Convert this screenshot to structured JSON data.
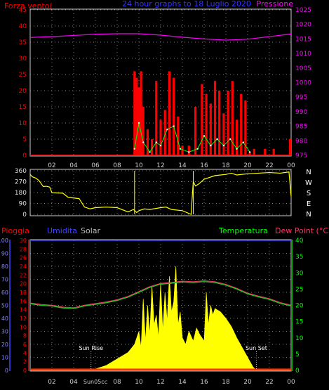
{
  "header": {
    "left": "Forza vento(",
    "center": "24 hour graphs to 18 Luglio 2020",
    "right": "Pressione"
  },
  "colors": {
    "red": "#ff0000",
    "yellow": "#ffff00",
    "magenta": "#ff00ff",
    "green": "#00cc00",
    "lime": "#00ff00",
    "blue": "#4444ff",
    "white": "#ffffff",
    "grid": "#aaaaaa",
    "bg": "#000000"
  },
  "chart_data": [
    {
      "type": "bar",
      "name": "wind-pressure",
      "left_axis": {
        "ticks": [
          "0",
          "5",
          "10",
          "15",
          "20",
          "25",
          "30",
          "35",
          "40",
          "45"
        ],
        "range": [
          0,
          45
        ]
      },
      "right_axis": {
        "label": "Pressione",
        "ticks": [
          "975",
          "980",
          "985",
          "990",
          "995",
          "1000",
          "1005",
          "1010",
          "1015",
          "1020",
          "1025"
        ],
        "range": [
          975,
          1025
        ]
      },
      "x_ticks": [
        "02",
        "04",
        "06",
        "08",
        "10",
        "12",
        "14",
        "16",
        "18",
        "20",
        "22",
        "00"
      ],
      "x_range_hours": [
        0,
        24
      ],
      "pressure": {
        "x": [
          0,
          2,
          4,
          6,
          8,
          10,
          12,
          14,
          16,
          18,
          20,
          22,
          24
        ],
        "y": [
          1015.5,
          1015.8,
          1016.2,
          1016.6,
          1016.8,
          1016.8,
          1016.3,
          1015.6,
          1015.0,
          1014.6,
          1014.9,
          1015.8,
          1016.7
        ]
      },
      "gust_series": {
        "x": [
          9.6,
          9.8,
          10.0,
          10.2,
          10.4,
          10.8,
          11.2,
          11.6,
          12.0,
          12.4,
          12.8,
          13.2,
          13.6,
          14.0,
          14.6,
          15.2,
          15.8,
          16.2,
          16.6,
          17.0,
          17.4,
          17.8,
          18.2,
          18.6,
          19.0,
          19.4,
          19.8,
          20.2,
          20.6,
          21.6,
          22.4,
          23.9
        ],
        "y": [
          26,
          24,
          21,
          26,
          15,
          8,
          5,
          23,
          11,
          14,
          26,
          24,
          12,
          3,
          3,
          15,
          22,
          19,
          16,
          23,
          20,
          13,
          20,
          23,
          11,
          19,
          17,
          1,
          2,
          2,
          2,
          5
        ]
      },
      "speed_series": {
        "x": [
          9.6,
          10.0,
          10.4,
          11.0,
          11.6,
          12.0,
          12.6,
          13.2,
          13.8,
          14.6,
          15.4,
          16.0,
          16.6,
          17.2,
          17.8,
          18.4,
          19.0,
          19.6,
          20.2
        ],
        "y": [
          2,
          10,
          4,
          1,
          4,
          3,
          8,
          9,
          2,
          1,
          2,
          6,
          3,
          5,
          3,
          5,
          2,
          4,
          1
        ]
      }
    },
    {
      "type": "line",
      "name": "wind-direction",
      "left_axis": {
        "ticks": [
          "0",
          "90",
          "180",
          "270",
          "360"
        ],
        "range": [
          0,
          360
        ]
      },
      "right_labels": [
        "N",
        "W",
        "S",
        "E",
        "N"
      ],
      "x": [
        0.0,
        0.2,
        0.5,
        0.8,
        1.0,
        1.2,
        1.5,
        1.8,
        2.0,
        3.0,
        3.5,
        4.5,
        5.0,
        5.5,
        6.0,
        7.0,
        8.0,
        9.0,
        9.5,
        9.8,
        10.0,
        10.5,
        11.0,
        12.0,
        12.5,
        13.0,
        14.0,
        14.8,
        15.0,
        15.2,
        15.5,
        16.0,
        17.0,
        18.0,
        18.5,
        19.0,
        20.0,
        21.0,
        22.0,
        23.0,
        23.8,
        24.0
      ],
      "y": [
        330,
        310,
        300,
        280,
        255,
        230,
        232,
        225,
        178,
        175,
        140,
        130,
        60,
        45,
        55,
        60,
        55,
        20,
        40,
        15,
        30,
        45,
        40,
        55,
        60,
        40,
        30,
        0,
        270,
        235,
        250,
        290,
        320,
        330,
        340,
        325,
        335,
        340,
        345,
        340,
        350,
        150
      ]
    },
    {
      "type": "area",
      "name": "rain-humidity-solar-temp",
      "header": {
        "pioggia": "Pioggia",
        "umidita": "Umidita",
        "solar": "Solar",
        "temperatura": "Temperatura",
        "dew": "Dew Point (°C)"
      },
      "blue_axis": {
        "ticks": [
          "0",
          "10",
          "20",
          "30",
          "40",
          "50",
          "60",
          "70",
          "80",
          "90",
          "100"
        ],
        "range": [
          0,
          100
        ]
      },
      "red_axis": {
        "ticks": [
          "0",
          "2",
          "4",
          "6",
          "8",
          "10",
          "12",
          "14",
          "16",
          "18",
          "20",
          "22",
          "24",
          "26",
          "28",
          "30"
        ],
        "range": [
          0,
          30
        ]
      },
      "temp_axis": {
        "ticks": [
          "0",
          "5",
          "10",
          "15",
          "20",
          "25",
          "30",
          "35",
          "40"
        ],
        "range": [
          0,
          40
        ]
      },
      "x_ticks": [
        "02",
        "04",
        "06",
        "08",
        "10",
        "12",
        "14",
        "16",
        "18",
        "20",
        "22",
        "00"
      ],
      "x_range_hours": [
        0,
        24
      ],
      "annotations": {
        "sunrise": "Sun Rise",
        "sunset": "Sun Set",
        "sunrise_axis": "Sun05cc",
        "sunrise_h": 5.6,
        "sunset_h": 20.8
      },
      "temperature": {
        "x": [
          0,
          1,
          2,
          3,
          4,
          5,
          6,
          7,
          8,
          9,
          10,
          11,
          12,
          13,
          14,
          15,
          16,
          17,
          18,
          19,
          20,
          21,
          22,
          23,
          24
        ],
        "y": [
          20.5,
          20.0,
          19.8,
          19.2,
          19.0,
          19.8,
          20.3,
          20.8,
          21.5,
          22.5,
          24.0,
          25.5,
          26.5,
          26.8,
          27.2,
          27.0,
          27.3,
          27.0,
          26.2,
          25.0,
          23.5,
          22.6,
          21.8,
          20.6,
          19.8
        ]
      },
      "solar": {
        "x": [
          5.6,
          7.0,
          8.0,
          9.0,
          9.6,
          10.0,
          10.2,
          10.4,
          10.6,
          10.8,
          11.0,
          11.2,
          11.4,
          11.6,
          11.8,
          12.0,
          12.2,
          12.4,
          12.6,
          12.8,
          13.0,
          13.2,
          13.4,
          13.6,
          13.8,
          14.0,
          14.3,
          14.6,
          15.0,
          15.3,
          15.6,
          16.0,
          16.2,
          16.4,
          16.6,
          16.8,
          17.0,
          17.5,
          18.0,
          18.5,
          19.0,
          19.5,
          20.0,
          20.5,
          20.8
        ],
        "y": [
          0,
          1.5,
          3.5,
          5.5,
          8,
          12,
          7,
          22,
          9,
          20,
          11,
          26,
          14,
          17,
          10,
          27,
          12,
          24,
          15,
          29,
          18,
          21,
          32,
          14,
          18,
          10,
          8,
          12,
          9,
          13,
          11,
          9,
          24,
          14,
          20,
          17,
          19,
          18,
          16,
          13.5,
          10,
          7,
          4,
          1,
          0
        ]
      }
    }
  ]
}
